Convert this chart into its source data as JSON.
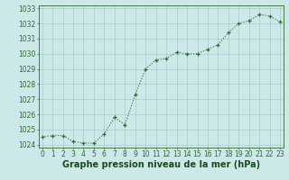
{
  "x": [
    0,
    1,
    2,
    3,
    4,
    5,
    6,
    7,
    8,
    9,
    10,
    11,
    12,
    13,
    14,
    15,
    16,
    17,
    18,
    19,
    20,
    21,
    22,
    23
  ],
  "y": [
    1024.5,
    1024.6,
    1024.6,
    1024.2,
    1024.1,
    1024.1,
    1024.7,
    1025.8,
    1025.3,
    1027.3,
    1029.0,
    1029.6,
    1029.7,
    1030.1,
    1030.0,
    1030.0,
    1030.3,
    1030.6,
    1031.4,
    1032.0,
    1032.2,
    1032.6,
    1032.5,
    1032.1
  ],
  "ylim": [
    1023.8,
    1033.2
  ],
  "yticks": [
    1024,
    1025,
    1026,
    1027,
    1028,
    1029,
    1030,
    1031,
    1032,
    1033
  ],
  "xticks": [
    0,
    1,
    2,
    3,
    4,
    5,
    6,
    7,
    8,
    9,
    10,
    11,
    12,
    13,
    14,
    15,
    16,
    17,
    18,
    19,
    20,
    21,
    22,
    23
  ],
  "line_color": "#2d6a2d",
  "marker": "+",
  "bg_color": "#cce8e8",
  "grid_color": "#aacccc",
  "xlabel": "Graphe pression niveau de la mer (hPa)",
  "xlabel_color": "#1a4a1a",
  "tick_color": "#2d6a2d",
  "tick_fontsize": 5.5,
  "xlabel_fontsize": 7.0
}
